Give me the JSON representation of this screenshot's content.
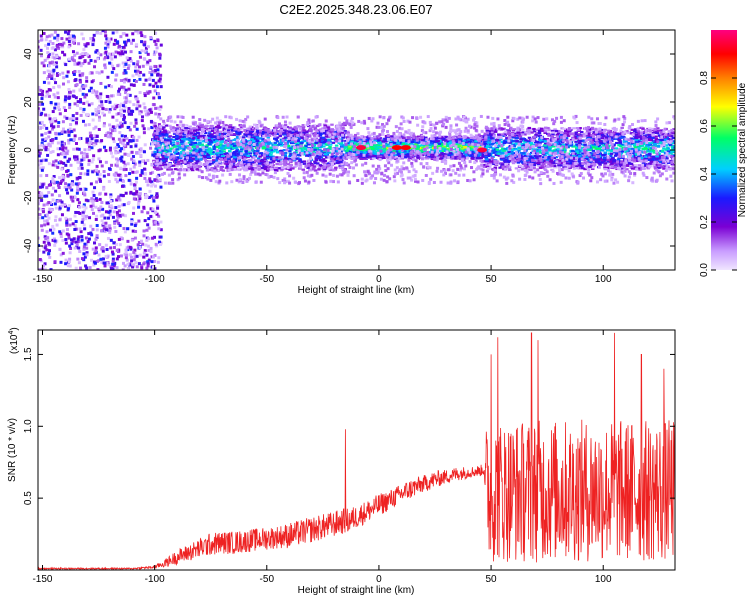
{
  "title": "C2E2.2025.348.23.06.E07",
  "chart_data": [
    {
      "type": "heatmap",
      "xlabel": "Height of straight line (km)",
      "ylabel": "Frequency (Hz)",
      "xlim": [
        -152,
        132
      ],
      "ylim": [
        -50,
        50
      ],
      "xticks": [
        -150,
        -100,
        -50,
        0,
        50,
        100
      ],
      "yticks": [
        -40,
        -20,
        0,
        20,
        40
      ],
      "colorbar": {
        "label": "Normalized spectral amplitude",
        "range": [
          0.0,
          1.0
        ],
        "ticks": [
          0.0,
          0.2,
          0.4,
          0.6,
          0.8
        ],
        "colors": [
          "#e6d6ff",
          "#7b00d4",
          "#1a1aff",
          "#00cfff",
          "#00ff66",
          "#ffff00",
          "#ff8000",
          "#ff0000",
          "#ff0080"
        ]
      },
      "regions": [
        {
          "x_range": [
            -152,
            -97
          ],
          "f_range": [
            -50,
            50
          ],
          "amplitude": 0.15,
          "desc": "scattered"
        },
        {
          "x_range": [
            -100,
            -15
          ],
          "f_range": [
            -5,
            7
          ],
          "amplitude": 0.45
        },
        {
          "x_range": [
            -15,
            47
          ],
          "f_range": [
            -2,
            4
          ],
          "amplitude": 0.6
        },
        {
          "x_range": [
            47,
            132
          ],
          "f_range": [
            -5,
            6
          ],
          "amplitude": 0.45
        }
      ],
      "peaks": [
        {
          "x": -8,
          "f": 1,
          "amplitude": 0.95
        },
        {
          "x": 8,
          "f": 1,
          "amplitude": 0.9
        },
        {
          "x": 12,
          "f": 1,
          "amplitude": 0.9
        },
        {
          "x": 46,
          "f": 0,
          "amplitude": 0.95
        }
      ]
    },
    {
      "type": "line",
      "xlabel": "Height of straight line (km)",
      "ylabel": "SNR (10 * v/v)",
      "y_multiplier": "(x10",
      "y_multiplier_exp": "4",
      "y_multiplier_close": ")",
      "xlim": [
        -152,
        132
      ],
      "ylim": [
        0,
        1.67
      ],
      "xticks": [
        -150,
        -100,
        -50,
        0,
        50,
        100
      ],
      "yticks": [
        0.5,
        1.0,
        1.5
      ],
      "ytick_labels": [
        "0.5",
        "1.0",
        "1.5"
      ],
      "color": "#ee2222",
      "series": [
        {
          "x": [
            -152,
            -140,
            -130,
            -120,
            -110,
            -100,
            -95,
            -90,
            -85,
            -80,
            -75,
            -70,
            -65,
            -60,
            -55,
            -50,
            -45,
            -40,
            -35,
            -30,
            -25,
            -20,
            -16,
            -15,
            -14,
            -10,
            -5,
            0,
            5,
            10,
            15,
            20,
            25,
            30,
            35,
            40,
            45,
            47,
            48,
            50,
            55,
            60,
            65,
            70,
            75,
            80,
            85,
            90,
            95,
            100,
            105,
            110,
            115,
            120,
            125,
            132
          ],
          "y_base": [
            0.01,
            0.01,
            0.01,
            0.01,
            0.01,
            0.02,
            0.05,
            0.09,
            0.12,
            0.15,
            0.18,
            0.19,
            0.19,
            0.2,
            0.21,
            0.22,
            0.23,
            0.24,
            0.26,
            0.28,
            0.3,
            0.32,
            0.34,
            0.34,
            0.34,
            0.37,
            0.41,
            0.45,
            0.49,
            0.53,
            0.57,
            0.6,
            0.63,
            0.65,
            0.67,
            0.68,
            0.69,
            0.7,
            0.55,
            0.55,
            0.55,
            0.55,
            0.55,
            0.55,
            0.55,
            0.55,
            0.55,
            0.55,
            0.55,
            0.55,
            0.55,
            0.55,
            0.55,
            0.55,
            0.55,
            0.55
          ],
          "y_noise": [
            0.005,
            0.005,
            0.005,
            0.005,
            0.005,
            0.01,
            0.03,
            0.05,
            0.06,
            0.07,
            0.08,
            0.08,
            0.08,
            0.08,
            0.08,
            0.08,
            0.08,
            0.09,
            0.09,
            0.09,
            0.09,
            0.09,
            0.09,
            0.09,
            0.09,
            0.08,
            0.08,
            0.08,
            0.07,
            0.07,
            0.07,
            0.06,
            0.06,
            0.05,
            0.05,
            0.04,
            0.04,
            0.04,
            0.5,
            0.5,
            0.5,
            0.5,
            0.5,
            0.5,
            0.5,
            0.5,
            0.5,
            0.5,
            0.5,
            0.5,
            0.5,
            0.5,
            0.5,
            0.5,
            0.5,
            0.5
          ],
          "spikes": [
            {
              "x": -15,
              "y": 0.98
            },
            {
              "x": 50,
              "y": 1.5
            },
            {
              "x": 53,
              "y": 1.62
            },
            {
              "x": 68,
              "y": 1.65
            },
            {
              "x": 71,
              "y": 1.6
            },
            {
              "x": 105,
              "y": 1.65
            },
            {
              "x": 117,
              "y": 1.5
            },
            {
              "x": 127,
              "y": 1.4
            }
          ]
        }
      ]
    }
  ]
}
